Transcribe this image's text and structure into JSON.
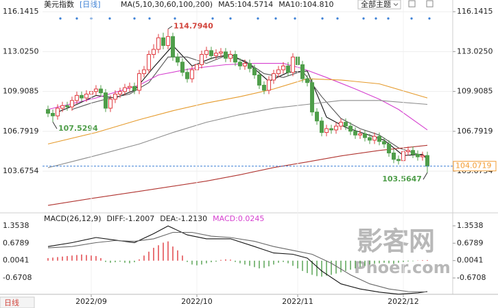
{
  "header": {
    "title": "美元指数",
    "period": "[日线]",
    "theme_button": "全部主题",
    "bottom_button": "日线",
    "watermark": "影客网",
    "watermark_domain": "Phoer.com"
  },
  "chart_data": [
    {
      "type": "candlestick",
      "legend": [
        "MA(5,10,30,60,100,200)",
        "MA5:104.5714",
        "MA10:104.810"
      ],
      "up_color": "#e0393e",
      "down_color": "#4f9e4a",
      "xlim": [
        -1.14,
        84.29
      ],
      "ylim": [
        100.74,
        116.52
      ],
      "yticks": [
        116.1415,
        {
          "value": 113.025,
          "label": "113.0250"
        },
        109.9085,
        106.7919,
        103.6754
      ],
      "grid": true,
      "open": [
        108.5,
        108.2,
        108.0,
        108.6,
        108.8,
        108.7,
        109.2,
        109.6,
        109.4,
        109.7,
        109.9,
        110.1,
        109.8,
        108.6,
        109.3,
        109.7,
        109.9,
        110.2,
        110.3,
        110.0,
        111.3,
        111.6,
        112.8,
        113.2,
        114.1,
        113.5,
        114.2,
        112.6,
        112.2,
        111.4,
        110.9,
        111.6,
        112.0,
        112.8,
        113.1,
        112.7,
        112.9,
        113.0,
        112.5,
        112.8,
        112.2,
        111.9,
        112.1,
        111.7,
        111.2,
        110.4,
        110.0,
        110.8,
        111.3,
        111.6,
        111.9,
        111.4,
        112.6,
        112.0,
        110.9,
        110.6,
        108.3,
        107.6,
        106.7,
        107.0,
        106.9,
        107.2,
        107.5,
        107.2,
        106.8,
        106.5,
        106.6,
        106.3,
        106.1,
        106.4,
        106.0,
        105.8,
        105.1,
        104.6,
        104.5,
        105.2,
        105.3,
        105.0,
        104.8,
        104.9
      ],
      "high": [
        108.8,
        108.5,
        108.9,
        109.1,
        109.1,
        109.5,
        109.9,
        109.9,
        110.0,
        110.2,
        110.4,
        110.4,
        110.1,
        109.6,
        110.0,
        110.2,
        110.5,
        110.6,
        110.6,
        111.6,
        111.9,
        113.1,
        113.6,
        114.4,
        114.5,
        114.794,
        114.5,
        112.9,
        112.5,
        111.7,
        111.9,
        112.3,
        113.1,
        113.4,
        113.4,
        113.2,
        113.3,
        113.3,
        113.1,
        113.1,
        112.5,
        112.4,
        112.4,
        112.0,
        111.5,
        110.7,
        111.1,
        111.6,
        111.9,
        112.2,
        112.2,
        112.9,
        112.9,
        112.3,
        111.2,
        110.9,
        108.6,
        107.9,
        107.3,
        107.3,
        107.5,
        107.8,
        107.8,
        107.5,
        107.1,
        106.9,
        106.9,
        106.6,
        106.7,
        106.7,
        106.3,
        106.1,
        105.4,
        104.9,
        105.5,
        105.6,
        105.6,
        105.3,
        105.2,
        105.2
      ],
      "low": [
        107.9,
        107.5294,
        107.7,
        108.3,
        108.4,
        108.4,
        108.9,
        109.1,
        109.1,
        109.4,
        109.6,
        109.5,
        108.3,
        108.3,
        109.0,
        109.4,
        109.6,
        109.9,
        109.7,
        109.7,
        111.0,
        111.3,
        112.5,
        112.9,
        113.2,
        113.2,
        112.3,
        111.9,
        111.1,
        110.6,
        110.6,
        111.3,
        111.7,
        112.5,
        112.4,
        112.4,
        112.6,
        112.2,
        112.2,
        111.9,
        111.6,
        111.6,
        111.4,
        110.9,
        110.1,
        109.7,
        109.7,
        110.5,
        111.0,
        111.3,
        111.1,
        111.1,
        111.7,
        110.6,
        110.3,
        108.0,
        107.3,
        106.4,
        106.4,
        106.6,
        106.6,
        106.9,
        106.9,
        106.5,
        106.2,
        106.2,
        106.0,
        105.8,
        105.8,
        105.7,
        105.5,
        104.8,
        104.3,
        104.2,
        104.2,
        104.9,
        104.7,
        104.5,
        104.5,
        103.5647
      ],
      "close": [
        108.2,
        108.0,
        108.6,
        108.8,
        108.7,
        109.2,
        109.6,
        109.4,
        109.7,
        109.9,
        110.1,
        109.8,
        108.6,
        109.3,
        109.7,
        109.9,
        110.2,
        110.3,
        110.0,
        111.3,
        111.6,
        112.8,
        113.2,
        114.1,
        113.5,
        114.2,
        112.6,
        112.2,
        111.4,
        110.9,
        111.6,
        112.0,
        112.8,
        113.1,
        112.7,
        112.9,
        113.0,
        112.5,
        112.8,
        112.2,
        111.9,
        112.1,
        111.7,
        111.2,
        110.4,
        110.0,
        110.8,
        111.3,
        111.6,
        111.9,
        111.4,
        112.6,
        112.0,
        110.9,
        110.6,
        108.3,
        107.6,
        106.7,
        107.0,
        106.9,
        107.2,
        107.5,
        107.2,
        106.8,
        106.5,
        106.6,
        106.3,
        106.1,
        106.4,
        106.0,
        105.8,
        105.1,
        104.6,
        104.5,
        105.2,
        105.3,
        105.0,
        104.8,
        104.9,
        104.0719
      ],
      "last_price_color": "#3a7fd5",
      "last_price_box_color": "#f39c32",
      "annotations": [
        {
          "index": 25,
          "value": 114.794,
          "label": "114.7940",
          "color": "#d2453d"
        },
        {
          "index": 1,
          "value": 107.5294,
          "label": "107.5294",
          "color": "#4f9e4a"
        },
        {
          "index": 79,
          "value": 103.5647,
          "label": "103.5647",
          "color": "#4f9e4a"
        }
      ],
      "series": [
        {
          "color": "#111111",
          "x": [
            2,
            6,
            10,
            14,
            18,
            22,
            26,
            30,
            34,
            38,
            42,
            46,
            50,
            54,
            58,
            62,
            66,
            70,
            74,
            78,
            79
          ],
          "values": [
            108.3,
            108.9,
            109.6,
            109.4,
            110.0,
            111.8,
            113.5,
            111.9,
            112.5,
            112.8,
            112.0,
            110.7,
            111.4,
            111.5,
            107.9,
            107.1,
            106.6,
            106.1,
            104.9,
            105.0,
            104.5714
          ]
        },
        {
          "color": "#555555",
          "x": [
            5,
            9,
            13,
            17,
            21,
            25,
            29,
            33,
            37,
            41,
            45,
            49,
            53,
            57,
            61,
            65,
            69,
            73,
            77,
            79
          ],
          "values": [
            108.5,
            109.0,
            109.4,
            109.7,
            110.6,
            112.6,
            112.6,
            112.1,
            112.7,
            112.3,
            111.3,
            111.0,
            111.5,
            109.5,
            107.8,
            107.0,
            106.5,
            105.5,
            105.0,
            104.81
          ]
        },
        {
          "color": "#d53fcf",
          "x": [
            0,
            10,
            19,
            23,
            30,
            37,
            43,
            49,
            53,
            58,
            64,
            69,
            73,
            79
          ],
          "values": [
            108.5,
            109.4,
            110.4,
            111.2,
            111.7,
            112.0,
            112.1,
            112.1,
            111.7,
            111.0,
            110.1,
            109.3,
            108.5,
            106.9
          ]
        },
        {
          "color": "#e59a2b",
          "x": [
            0,
            10,
            19,
            26,
            33,
            40,
            47,
            54,
            61,
            69,
            79
          ],
          "values": [
            105.8,
            106.7,
            107.7,
            108.4,
            109.0,
            109.5,
            110.1,
            110.9,
            110.8,
            110.5,
            109.4
          ]
        },
        {
          "color": "#8c8c8c",
          "x": [
            0,
            10,
            19,
            26,
            33,
            40,
            47,
            54,
            61,
            69,
            79
          ],
          "values": [
            103.95,
            104.9,
            105.8,
            106.7,
            107.5,
            108.1,
            108.6,
            108.9,
            109.2,
            109.2,
            108.9
          ]
        },
        {
          "color": "#b0332f",
          "x": [
            0,
            10,
            19,
            26,
            33,
            40,
            47,
            54,
            61,
            69,
            79
          ],
          "values": [
            101.0,
            101.6,
            102.1,
            102.5,
            102.9,
            103.4,
            103.96,
            104.4,
            104.87,
            105.3,
            105.7
          ]
        }
      ]
    },
    {
      "type": "line",
      "legend": [
        "MACD(26,12,9)",
        "DIFF:-1.2007",
        "DEA:-1.2130",
        "MACD:0.0245"
      ],
      "legend_colors": [
        "#222222",
        "#222222",
        "#222222",
        "#d53fcf"
      ],
      "xlim": [
        -1.14,
        84.29
      ],
      "ylim": [
        -1.306,
        1.671
      ],
      "yticks": [
        1.3538,
        0.6789,
        0.0041,
        -0.6708
      ],
      "xticks": [
        {
          "value": 9,
          "label": "2022/09"
        },
        {
          "value": 31,
          "label": "2022/10"
        },
        {
          "value": 52,
          "label": "2022/11"
        },
        {
          "value": 74,
          "label": "2022/12"
        }
      ],
      "series": [
        {
          "type": "bar",
          "up_color": "#e0393e",
          "down_color": "#4f9e4a",
          "values": [
            0.1,
            0.12,
            0.14,
            0.16,
            0.18,
            0.2,
            0.22,
            0.24,
            0.22,
            0.2,
            0.18,
            0.1,
            -0.05,
            -0.08,
            -0.06,
            -0.04,
            -0.08,
            -0.1,
            -0.06,
            0.05,
            0.2,
            0.35,
            0.5,
            0.6,
            0.7,
            0.75,
            0.55,
            0.4,
            0.2,
            -0.05,
            -0.15,
            -0.18,
            -0.15,
            -0.1,
            -0.06,
            -0.04,
            0.03,
            0.05,
            0.04,
            -0.05,
            -0.1,
            -0.15,
            -0.2,
            -0.25,
            -0.3,
            -0.28,
            -0.22,
            -0.15,
            -0.08,
            -0.05,
            -0.1,
            -0.2,
            -0.3,
            -0.4,
            -0.48,
            -0.55,
            -0.6,
            -0.62,
            -0.58,
            -0.55,
            -0.5,
            -0.45,
            -0.4,
            -0.35,
            -0.3,
            -0.25,
            -0.2,
            -0.15,
            -0.12,
            -0.1,
            -0.08,
            -0.1,
            -0.12,
            -0.08,
            -0.05,
            -0.03,
            -0.02,
            0.01,
            0.02,
            0.0245
          ]
        },
        {
          "type": "line",
          "color": "#111111",
          "x": [
            0,
            5,
            10,
            14,
            18,
            22,
            25,
            29,
            33,
            38,
            43,
            47,
            51,
            54,
            57,
            61,
            65,
            69,
            73,
            77,
            79
          ],
          "values": [
            0.55,
            0.7,
            0.9,
            0.8,
            0.7,
            1.05,
            1.35,
            1.0,
            0.85,
            0.85,
            0.55,
            0.3,
            0.25,
            0.1,
            -0.4,
            -0.9,
            -1.1,
            -1.22,
            -1.3,
            -1.25,
            -1.2007
          ]
        },
        {
          "type": "line",
          "color": "#666666",
          "x": [
            0,
            5,
            10,
            14,
            18,
            22,
            26,
            30,
            34,
            38,
            43,
            47,
            51,
            55,
            59,
            63,
            67,
            71,
            75,
            79
          ],
          "values": [
            0.5,
            0.55,
            0.7,
            0.78,
            0.75,
            0.85,
            1.1,
            1.1,
            0.95,
            0.9,
            0.75,
            0.55,
            0.4,
            0.25,
            -0.1,
            -0.55,
            -0.9,
            -1.1,
            -1.2,
            -1.213
          ]
        }
      ]
    }
  ]
}
